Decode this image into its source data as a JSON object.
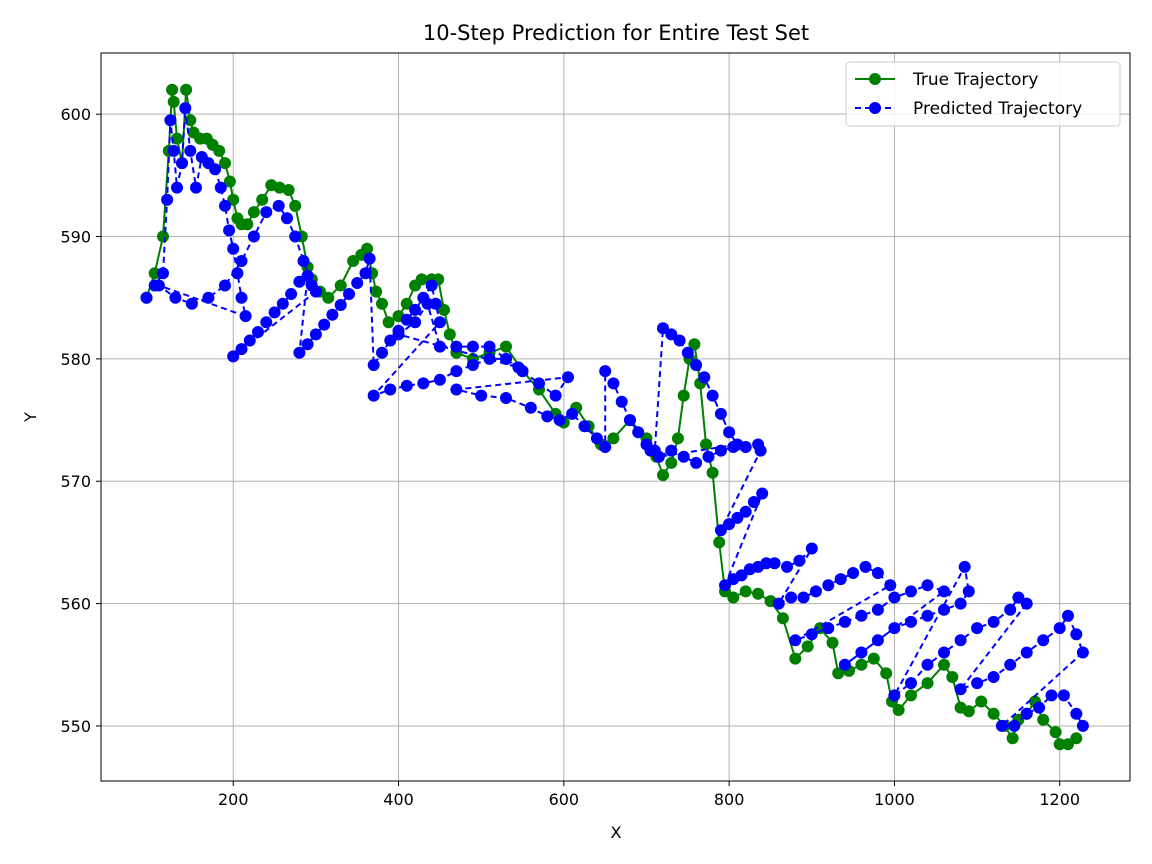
{
  "chart_data": {
    "type": "line",
    "title": "10-Step Prediction for Entire Test Set",
    "xlabel": "X",
    "ylabel": "Y",
    "xlim": [
      40,
      1285
    ],
    "ylim": [
      545.5,
      605
    ],
    "xticks": [
      200,
      400,
      600,
      800,
      1000,
      1200
    ],
    "yticks": [
      550,
      560,
      570,
      580,
      590,
      600
    ],
    "grid": true,
    "legend_position": "top-right",
    "series": [
      {
        "name": "True Trajectory",
        "color": "#008000",
        "line_style": "solid",
        "marker": "circle",
        "points": [
          [
            95,
            585
          ],
          [
            105,
            587
          ],
          [
            115,
            590
          ],
          [
            122,
            597
          ],
          [
            126,
            602
          ],
          [
            128,
            601
          ],
          [
            132,
            598
          ],
          [
            138,
            596
          ],
          [
            143,
            602
          ],
          [
            148,
            599.5
          ],
          [
            152,
            598.5
          ],
          [
            160,
            598
          ],
          [
            168,
            598
          ],
          [
            175,
            597.5
          ],
          [
            183,
            597
          ],
          [
            190,
            596
          ],
          [
            196,
            594.5
          ],
          [
            200,
            593
          ],
          [
            205,
            591.5
          ],
          [
            210,
            591
          ],
          [
            217,
            591
          ],
          [
            225,
            592
          ],
          [
            235,
            593
          ],
          [
            246,
            594.2
          ],
          [
            256,
            594
          ],
          [
            267,
            593.8
          ],
          [
            275,
            592.5
          ],
          [
            283,
            590
          ],
          [
            290,
            587.5
          ],
          [
            295,
            586.5
          ],
          [
            305,
            585.5
          ],
          [
            315,
            585
          ],
          [
            330,
            586
          ],
          [
            345,
            588
          ],
          [
            355,
            588.5
          ],
          [
            362,
            589
          ],
          [
            368,
            587
          ],
          [
            373,
            585.5
          ],
          [
            380,
            584.5
          ],
          [
            388,
            583
          ],
          [
            400,
            583.5
          ],
          [
            410,
            584.5
          ],
          [
            420,
            586
          ],
          [
            428,
            586.5
          ],
          [
            440,
            586.5
          ],
          [
            448,
            586.5
          ],
          [
            455,
            584
          ],
          [
            462,
            582
          ],
          [
            470,
            580.5
          ],
          [
            490,
            580
          ],
          [
            510,
            580.5
          ],
          [
            530,
            581
          ],
          [
            550,
            579
          ],
          [
            570,
            577.5
          ],
          [
            590,
            575.5
          ],
          [
            600,
            574.8
          ],
          [
            615,
            576
          ],
          [
            630,
            574.5
          ],
          [
            645,
            573
          ],
          [
            660,
            573.5
          ],
          [
            680,
            575
          ],
          [
            700,
            573.5
          ],
          [
            712,
            572
          ],
          [
            720,
            570.5
          ],
          [
            730,
            571.5
          ],
          [
            738,
            573.5
          ],
          [
            745,
            577
          ],
          [
            752,
            580
          ],
          [
            758,
            581.2
          ],
          [
            765,
            578
          ],
          [
            772,
            573
          ],
          [
            780,
            570.7
          ],
          [
            788,
            565
          ],
          [
            795,
            561
          ],
          [
            805,
            560.5
          ],
          [
            820,
            561
          ],
          [
            835,
            560.8
          ],
          [
            850,
            560.2
          ],
          [
            865,
            558.8
          ],
          [
            880,
            555.5
          ],
          [
            895,
            556.5
          ],
          [
            910,
            558
          ],
          [
            925,
            556.8
          ],
          [
            932,
            554.3
          ],
          [
            945,
            554.5
          ],
          [
            960,
            555
          ],
          [
            975,
            555.5
          ],
          [
            990,
            554.3
          ],
          [
            997,
            552
          ],
          [
            1005,
            551.3
          ],
          [
            1020,
            552.5
          ],
          [
            1040,
            553.5
          ],
          [
            1060,
            555
          ],
          [
            1070,
            554
          ],
          [
            1080,
            551.5
          ],
          [
            1090,
            551.2
          ],
          [
            1105,
            552
          ],
          [
            1120,
            551
          ],
          [
            1133,
            550
          ],
          [
            1143,
            549
          ],
          [
            1150,
            550.5
          ],
          [
            1160,
            551
          ],
          [
            1170,
            552
          ],
          [
            1180,
            550.5
          ],
          [
            1195,
            549.5
          ],
          [
            1200,
            548.5
          ],
          [
            1210,
            548.5
          ],
          [
            1220,
            549
          ]
        ]
      },
      {
        "name": "Predicted Trajectory",
        "color": "#0000ff",
        "line_style": "dashed",
        "marker": "circle",
        "points": [
          [
            95,
            585
          ],
          [
            105,
            586
          ],
          [
            115,
            587
          ],
          [
            120,
            593
          ],
          [
            124,
            599.5
          ],
          [
            128,
            597
          ],
          [
            132,
            594
          ],
          [
            138,
            596
          ],
          [
            142,
            600.5
          ],
          [
            148,
            597
          ],
          [
            155,
            594
          ],
          [
            162,
            596.5
          ],
          [
            170,
            596
          ],
          [
            178,
            595.5
          ],
          [
            185,
            594
          ],
          [
            190,
            592.5
          ],
          [
            195,
            590.5
          ],
          [
            200,
            589
          ],
          [
            205,
            587
          ],
          [
            210,
            585
          ],
          [
            215,
            583.5
          ],
          [
            110,
            586
          ],
          [
            130,
            585
          ],
          [
            150,
            584.5
          ],
          [
            170,
            585
          ],
          [
            190,
            586
          ],
          [
            210,
            588
          ],
          [
            225,
            590
          ],
          [
            240,
            592
          ],
          [
            255,
            592.5
          ],
          [
            265,
            591.5
          ],
          [
            275,
            590
          ],
          [
            285,
            588
          ],
          [
            295,
            586
          ],
          [
            300,
            585.5
          ],
          [
            200,
            580.2
          ],
          [
            210,
            580.8
          ],
          [
            220,
            581.5
          ],
          [
            230,
            582.2
          ],
          [
            240,
            583
          ],
          [
            250,
            583.8
          ],
          [
            260,
            584.5
          ],
          [
            270,
            585.3
          ],
          [
            280,
            586.3
          ],
          [
            290,
            586.8
          ],
          [
            280,
            580.5
          ],
          [
            290,
            581.2
          ],
          [
            300,
            582
          ],
          [
            310,
            582.8
          ],
          [
            320,
            583.6
          ],
          [
            330,
            584.4
          ],
          [
            340,
            585.3
          ],
          [
            350,
            586.2
          ],
          [
            360,
            587
          ],
          [
            365,
            588.2
          ],
          [
            370,
            579.5
          ],
          [
            380,
            580.5
          ],
          [
            390,
            581.5
          ],
          [
            400,
            582.3
          ],
          [
            410,
            583.2
          ],
          [
            420,
            584
          ],
          [
            430,
            585
          ],
          [
            440,
            586
          ],
          [
            445,
            584.5
          ],
          [
            450,
            583
          ],
          [
            370,
            577
          ],
          [
            390,
            577.5
          ],
          [
            410,
            577.8
          ],
          [
            430,
            578
          ],
          [
            450,
            578.3
          ],
          [
            470,
            579
          ],
          [
            490,
            579.5
          ],
          [
            510,
            580
          ],
          [
            530,
            580
          ],
          [
            545,
            579.3
          ],
          [
            400,
            582
          ],
          [
            420,
            583
          ],
          [
            435,
            584.5
          ],
          [
            450,
            581
          ],
          [
            470,
            581
          ],
          [
            490,
            581
          ],
          [
            510,
            581
          ],
          [
            530,
            580
          ],
          [
            550,
            579
          ],
          [
            570,
            578
          ],
          [
            590,
            577
          ],
          [
            605,
            578.5
          ],
          [
            470,
            577.5
          ],
          [
            500,
            577
          ],
          [
            530,
            576.8
          ],
          [
            560,
            576
          ],
          [
            580,
            575.3
          ],
          [
            595,
            575
          ],
          [
            610,
            575.5
          ],
          [
            625,
            574.5
          ],
          [
            640,
            573.5
          ],
          [
            650,
            572.8
          ],
          [
            650,
            579
          ],
          [
            660,
            578
          ],
          [
            670,
            576.5
          ],
          [
            680,
            575
          ],
          [
            690,
            574
          ],
          [
            700,
            573
          ],
          [
            705,
            572.5
          ],
          [
            710,
            572.5
          ],
          [
            720,
            582.5
          ],
          [
            730,
            582
          ],
          [
            740,
            581.5
          ],
          [
            750,
            580.5
          ],
          [
            760,
            579.5
          ],
          [
            770,
            578.5
          ],
          [
            780,
            577
          ],
          [
            790,
            575.5
          ],
          [
            800,
            574
          ],
          [
            810,
            573
          ],
          [
            715,
            572
          ],
          [
            730,
            572.5
          ],
          [
            745,
            572
          ],
          [
            760,
            571.5
          ],
          [
            775,
            572
          ],
          [
            790,
            572.5
          ],
          [
            805,
            572.8
          ],
          [
            820,
            572.8
          ],
          [
            835,
            573
          ],
          [
            838,
            572.5
          ],
          [
            790,
            566
          ],
          [
            800,
            566.5
          ],
          [
            810,
            567
          ],
          [
            820,
            567.5
          ],
          [
            830,
            568.3
          ],
          [
            840,
            569
          ],
          [
            795,
            561.5
          ],
          [
            805,
            562
          ],
          [
            815,
            562.3
          ],
          [
            825,
            562.8
          ],
          [
            835,
            563
          ],
          [
            845,
            563.3
          ],
          [
            855,
            563.3
          ],
          [
            870,
            563
          ],
          [
            885,
            563.5
          ],
          [
            900,
            564.5
          ],
          [
            860,
            560
          ],
          [
            875,
            560.5
          ],
          [
            890,
            560.5
          ],
          [
            905,
            561
          ],
          [
            920,
            561.5
          ],
          [
            935,
            562
          ],
          [
            950,
            562.5
          ],
          [
            965,
            563
          ],
          [
            980,
            562.5
          ],
          [
            995,
            561.5
          ],
          [
            880,
            557
          ],
          [
            900,
            557.5
          ],
          [
            920,
            558
          ],
          [
            940,
            558.5
          ],
          [
            960,
            559
          ],
          [
            980,
            559.5
          ],
          [
            1000,
            560.5
          ],
          [
            1020,
            561
          ],
          [
            1040,
            561.5
          ],
          [
            1060,
            561
          ],
          [
            940,
            555
          ],
          [
            960,
            556
          ],
          [
            980,
            557
          ],
          [
            1000,
            558
          ],
          [
            1020,
            558.5
          ],
          [
            1040,
            559
          ],
          [
            1060,
            559.5
          ],
          [
            1080,
            560
          ],
          [
            1090,
            561
          ],
          [
            1085,
            563
          ],
          [
            1000,
            552.5
          ],
          [
            1020,
            553.5
          ],
          [
            1040,
            555
          ],
          [
            1060,
            556
          ],
          [
            1080,
            557
          ],
          [
            1100,
            558
          ],
          [
            1120,
            558.5
          ],
          [
            1140,
            559.5
          ],
          [
            1150,
            560.5
          ],
          [
            1160,
            560
          ],
          [
            1080,
            553
          ],
          [
            1100,
            553.5
          ],
          [
            1120,
            554
          ],
          [
            1140,
            555
          ],
          [
            1160,
            556
          ],
          [
            1180,
            557
          ],
          [
            1200,
            558
          ],
          [
            1210,
            559
          ],
          [
            1220,
            557.5
          ],
          [
            1228,
            556
          ],
          [
            1130,
            550
          ],
          [
            1145,
            550
          ],
          [
            1160,
            551
          ],
          [
            1175,
            551.5
          ],
          [
            1190,
            552.5
          ],
          [
            1205,
            552.5
          ],
          [
            1220,
            551
          ],
          [
            1228,
            550
          ]
        ]
      }
    ]
  }
}
